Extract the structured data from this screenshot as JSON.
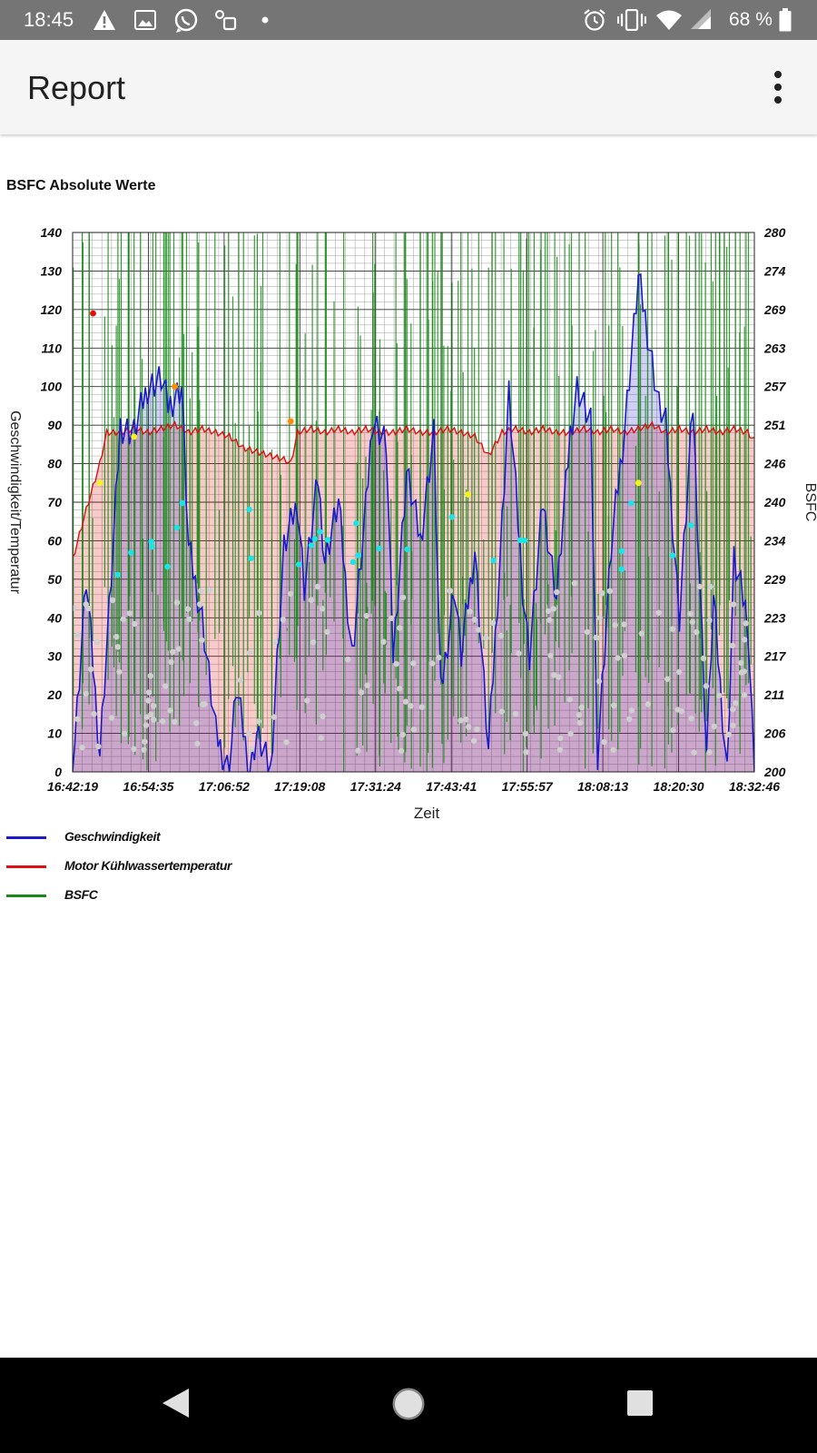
{
  "status_bar": {
    "time": "18:45",
    "battery": "68 %",
    "left_icons": [
      "alert-icon",
      "image-icon",
      "whatsapp-icon",
      "screen-record-icon",
      "dot-icon"
    ],
    "right_icons": [
      "alarm-icon",
      "vibrate-icon",
      "wifi-icon",
      "signal-icon",
      "battery-icon"
    ]
  },
  "app_bar": {
    "title": "Report",
    "menu_icon": "more-vert-icon"
  },
  "chart": {
    "title": "BSFC Absolute Werte",
    "x_label": "Zeit",
    "y_left_label": "Geschwindigkeit/Temperatur",
    "y_right_label": "BSFC"
  },
  "legend": [
    {
      "label": "Geschwindigkeit",
      "color": "#1a1acc"
    },
    {
      "label": "Motor Kühlwassertemperatur",
      "color": "#dd1111"
    },
    {
      "label": "BSFC",
      "color": "#178a17"
    }
  ],
  "chart_data": {
    "type": "line",
    "title": "BSFC Absolute Werte",
    "xlabel": "Zeit",
    "ylabel": "Geschwindigkeit/Temperatur",
    "y2label": "BSFC",
    "x_ticks": [
      "16:42:19",
      "16:54:35",
      "17:06:52",
      "17:19:08",
      "17:31:24",
      "17:43:41",
      "17:55:57",
      "18:08:13",
      "18:20:30",
      "18:32:46"
    ],
    "y_ticks": [
      0,
      10,
      20,
      30,
      40,
      50,
      60,
      70,
      80,
      90,
      100,
      110,
      120,
      130,
      140
    ],
    "y2_ticks": [
      200,
      206,
      211,
      217,
      223,
      229,
      234,
      240,
      246,
      251,
      257,
      263,
      269,
      274,
      280
    ],
    "ylim": [
      0,
      140
    ],
    "y2lim": [
      200,
      280
    ],
    "grid": true,
    "legend_position": "bottom-left",
    "series": [
      {
        "name": "Geschwindigkeit",
        "color": "#1a1acc",
        "x_index": [
          0,
          2,
          4,
          6,
          7,
          9,
          11,
          13,
          14,
          16,
          17,
          19,
          21,
          23,
          24,
          26,
          27,
          29,
          31,
          33,
          34,
          36,
          37,
          39,
          41,
          43,
          44,
          46,
          47,
          49,
          51,
          53,
          54,
          56,
          57,
          59,
          61,
          63,
          64,
          66,
          67,
          69,
          71,
          73,
          74,
          76,
          77,
          79,
          81,
          83,
          84,
          86,
          87,
          89,
          91,
          93,
          94,
          96,
          97,
          99,
          100
        ],
        "y": [
          0,
          50,
          5,
          60,
          90,
          88,
          100,
          102,
          95,
          100,
          58,
          40,
          10,
          0,
          22,
          0,
          10,
          0,
          58,
          70,
          48,
          76,
          55,
          70,
          30,
          68,
          92,
          85,
          30,
          78,
          60,
          88,
          20,
          48,
          30,
          58,
          5,
          65,
          98,
          48,
          30,
          70,
          45,
          88,
          100,
          90,
          5,
          58,
          90,
          128,
          118,
          95,
          90,
          40,
          95,
          5,
          45,
          0,
          55,
          40,
          0
        ]
      },
      {
        "name": "Motor Kühlwassertemperatur",
        "color": "#dd1111",
        "x_index": [
          0,
          2,
          4,
          5,
          7,
          9,
          11,
          13,
          15,
          17,
          19,
          21,
          23,
          25,
          27,
          29,
          31,
          32,
          33,
          35,
          37,
          39,
          41,
          43,
          45,
          47,
          49,
          51,
          53,
          55,
          57,
          59,
          61,
          63,
          65,
          67,
          69,
          71,
          73,
          75,
          77,
          79,
          81,
          83,
          85,
          87,
          89,
          91,
          93,
          95,
          97,
          99,
          100
        ],
        "y": [
          55,
          68,
          80,
          88,
          88,
          89,
          88,
          89,
          90,
          88,
          89,
          88,
          87,
          84,
          83,
          82,
          81,
          80,
          88,
          89,
          88,
          89,
          88,
          89,
          88,
          88,
          89,
          88,
          88,
          89,
          88,
          87,
          82,
          88,
          89,
          88,
          89,
          88,
          88,
          89,
          88,
          89,
          88,
          89,
          90,
          88,
          89,
          88,
          89,
          88,
          89,
          88,
          86
        ]
      },
      {
        "name": "BSFC",
        "color": "#178a17",
        "y_range_observed": [
          200,
          280
        ]
      }
    ]
  }
}
